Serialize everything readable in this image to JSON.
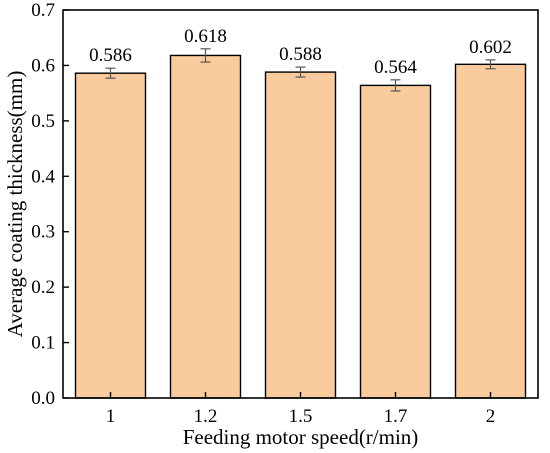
{
  "chart_data": {
    "type": "bar",
    "categories": [
      "1",
      "1.2",
      "1.5",
      "1.7",
      "2"
    ],
    "values": [
      0.586,
      0.618,
      0.588,
      0.564,
      0.602
    ],
    "value_labels": [
      "0.586",
      "0.618",
      "0.588",
      "0.564",
      "0.602"
    ],
    "errors": [
      0.009,
      0.012,
      0.009,
      0.01,
      0.008
    ],
    "xlabel": "Feeding motor speed(r/min)",
    "ylabel": "Average coating thickness(mm)",
    "ylim": [
      0,
      0.7
    ],
    "yticks": [
      "0.0",
      "0.1",
      "0.2",
      "0.3",
      "0.4",
      "0.5",
      "0.6",
      "0.7"
    ],
    "grid": false,
    "colors": {
      "bar_fill": "#FACB9C",
      "bar_stroke": "#000000",
      "axis": "#000000"
    }
  }
}
